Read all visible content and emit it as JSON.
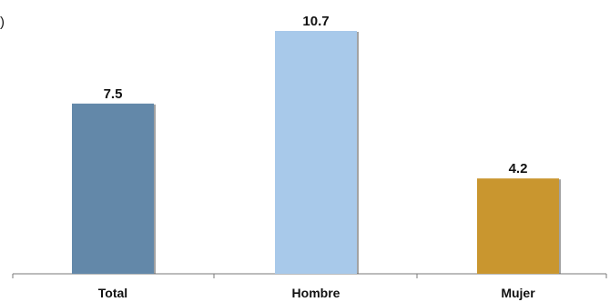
{
  "fragment_text": ")",
  "chart_data": {
    "type": "bar",
    "categories": [
      "Total",
      "Hombre",
      "Mujer"
    ],
    "values": [
      7.5,
      10.7,
      4.2
    ],
    "value_labels": [
      "7.5",
      "10.7",
      "4.2"
    ],
    "colors": [
      "#6388A9",
      "#A8C9EA",
      "#C9962F"
    ],
    "title": "",
    "xlabel": "",
    "ylabel": "",
    "ylim": [
      0,
      10.7
    ],
    "grid": false,
    "legend": "none"
  }
}
